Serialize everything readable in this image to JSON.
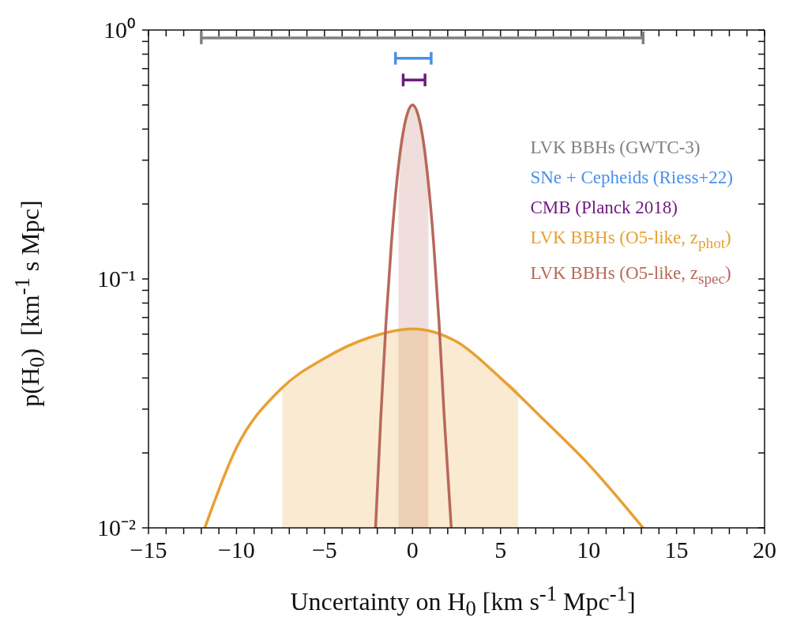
{
  "chart_data": {
    "type": "line",
    "xlabel": "Uncertainty on H$_{0}$  [km s$^{-1}$ Mpc$^{-1}$]",
    "ylabel": "p(H$_{0}$)  [km$^{-1}$ s Mpc]",
    "log": "y",
    "legend": "top right",
    "marker": "none",
    "xlim": [
      -15,
      20
    ],
    "ylim": [
      0.01,
      1
    ],
    "xticks": [
      -15,
      {
        "value": -14,
        "label": null
      },
      {
        "value": -13,
        "label": null
      },
      {
        "value": -12,
        "label": null
      },
      {
        "value": -11,
        "label": null
      },
      -10,
      {
        "value": -9,
        "label": null
      },
      {
        "value": -8,
        "label": null
      },
      {
        "value": -7,
        "label": null
      },
      {
        "value": -6,
        "label": null
      },
      -5,
      {
        "value": -4,
        "label": null
      },
      {
        "value": -3,
        "label": null
      },
      {
        "value": -2,
        "label": null
      },
      {
        "value": -1,
        "label": null
      },
      0,
      {
        "value": 1,
        "label": null
      },
      {
        "value": 2,
        "label": null
      },
      {
        "value": 3,
        "label": null
      },
      {
        "value": 4,
        "label": null
      },
      5,
      {
        "value": 6,
        "label": null
      },
      {
        "value": 7,
        "label": null
      },
      {
        "value": 8,
        "label": null
      },
      {
        "value": 9,
        "label": null
      },
      10,
      {
        "value": 11,
        "label": null
      },
      {
        "value": 12,
        "label": null
      },
      {
        "value": 13,
        "label": null
      },
      {
        "value": 14,
        "label": null
      },
      15,
      {
        "value": 16,
        "label": null
      },
      {
        "value": 17,
        "label": null
      },
      {
        "value": 18,
        "label": null
      },
      {
        "value": 19,
        "label": null
      },
      20
    ],
    "yticks": [
      {
        "value": 0.01,
        "label": "10⁻²"
      },
      {
        "value": 0.02,
        "label": null
      },
      {
        "value": 0.03,
        "label": null
      },
      {
        "value": 0.04,
        "label": null
      },
      {
        "value": 0.05,
        "label": null
      },
      {
        "value": 0.06,
        "label": null
      },
      {
        "value": 0.07,
        "label": null
      },
      {
        "value": 0.08,
        "label": null
      },
      {
        "value": 0.09,
        "label": null
      },
      {
        "value": 0.1,
        "label": "10⁻¹"
      },
      {
        "value": 0.2,
        "label": null
      },
      {
        "value": 0.3,
        "label": null
      },
      {
        "value": 0.4,
        "label": null
      },
      {
        "value": 0.5,
        "label": null
      },
      {
        "value": 0.6,
        "label": null
      },
      {
        "value": 0.7,
        "label": null
      },
      {
        "value": 0.8,
        "label": null
      },
      {
        "value": 0.9,
        "label": null
      },
      {
        "value": 1,
        "label": "10⁰"
      }
    ],
    "series": [
      {
        "name": "LVK BBHs (GWTC-3)",
        "color": "#808080",
        "x": [
          -12.0,
          13.1
        ],
        "values": [
          0.93,
          0.93
        ]
      },
      {
        "name": "SNe + Cepheids (Riess+22)",
        "color": "#4a90e8",
        "x": [
          -0.97,
          1.06
        ],
        "values": [
          0.77,
          0.77
        ]
      },
      {
        "name": "CMB (Planck 2018)",
        "color": "#6e1a7e",
        "x": [
          -0.53,
          0.71
        ],
        "values": [
          0.63,
          0.63
        ]
      },
      {
        "name": "LVK BBHs (O5-like, z$_{phot}$)",
        "color": "#e8a033",
        "x": [
          -11.8,
          -10,
          -7.5,
          -5,
          -2.5,
          0,
          2.5,
          5,
          7.5,
          10,
          13.1
        ],
        "values": [
          0.01,
          0.021,
          0.036,
          0.048,
          0.058,
          0.063,
          0.056,
          0.04,
          0.027,
          0.018,
          0.01
        ]
      },
      {
        "name": "LVK BBHs (O5-like, z$_{spec}$)",
        "color": "#b8685a",
        "x": [
          -2.1,
          -1.8,
          -1.5,
          -1.2,
          -0.9,
          -0.6,
          -0.3,
          0,
          0.3,
          0.6,
          0.9,
          1.2,
          1.5,
          1.8,
          2.2
        ],
        "values": [
          0.01,
          0.028,
          0.068,
          0.139,
          0.243,
          0.363,
          0.46,
          0.5,
          0.46,
          0.363,
          0.243,
          0.139,
          0.068,
          0.028,
          0.01
        ]
      },
      {
        "type": "area",
        "color": "#b8685a",
        "x": [
          -0.8,
          -0.6,
          -0.3,
          0,
          0.3,
          0.6,
          0.9
        ],
        "values": [
          0.21,
          0.363,
          0.46,
          0.5,
          0.46,
          0.363,
          0.243
        ]
      },
      {
        "type": "area",
        "color": "#e8a033",
        "x": [
          -7.4,
          -5,
          -2.5,
          0,
          2.5,
          5,
          6.0
        ],
        "values": [
          0.036,
          0.048,
          0.058,
          0.063,
          0.056,
          0.04,
          0.036
        ]
      }
    ]
  }
}
